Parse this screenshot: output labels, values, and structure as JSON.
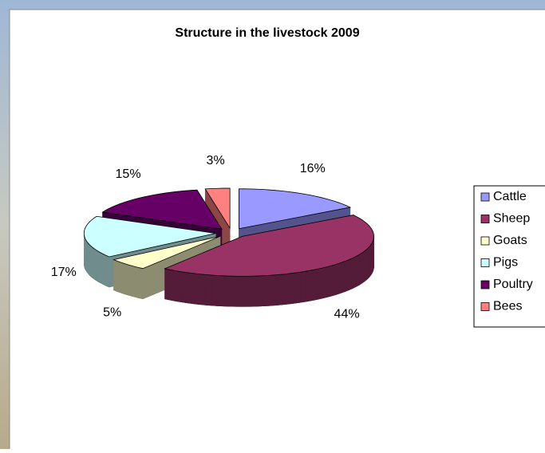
{
  "chart_data": {
    "type": "pie",
    "title": "Structure in the livestock 2009",
    "categories": [
      "Cattle",
      "Sheep",
      "Goats",
      "Pigs",
      "Poultry",
      "Bees"
    ],
    "values": [
      16,
      44,
      5,
      17,
      15,
      3
    ],
    "value_labels": [
      "16%",
      "44%",
      "5%",
      "17%",
      "15%",
      "3%"
    ],
    "colors": [
      "#9999ff",
      "#993366",
      "#ffffcc",
      "#ccffff",
      "#660066",
      "#ff8080"
    ],
    "legend": "right",
    "exploded": true,
    "three_d": true
  }
}
